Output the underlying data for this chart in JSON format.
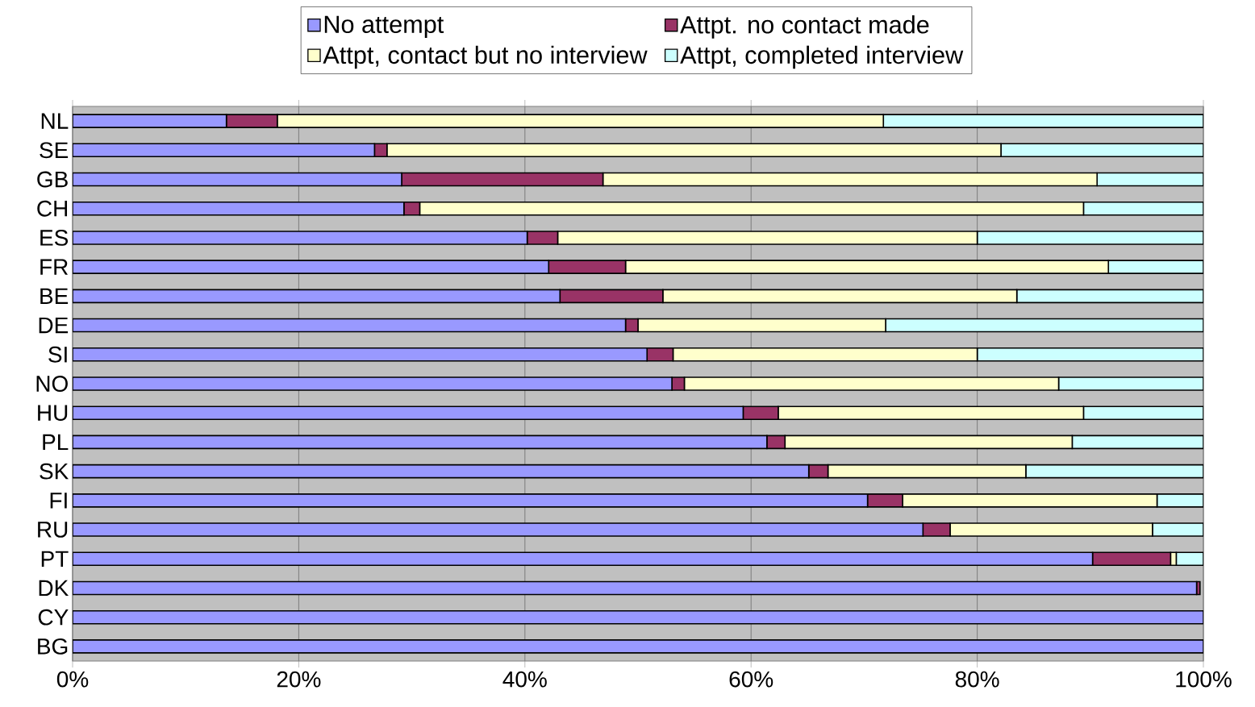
{
  "chart_data": {
    "type": "bar",
    "orientation": "horizontal",
    "stacked": true,
    "categories": [
      "NL",
      "SE",
      "GB",
      "CH",
      "ES",
      "FR",
      "BE",
      "DE",
      "SI",
      "NO",
      "HU",
      "PL",
      "SK",
      "FI",
      "RU",
      "PT",
      "DK",
      "CY",
      "BG"
    ],
    "series": [
      {
        "name": "No attempt",
        "color": "#9999ff",
        "values": [
          13.6,
          26.7,
          29.1,
          29.3,
          40.2,
          42.1,
          43.1,
          48.9,
          50.8,
          53.0,
          59.3,
          61.4,
          65.1,
          70.3,
          75.2,
          90.2,
          99.4,
          100,
          100
        ]
      },
      {
        "name": "Attpt. no contact made",
        "color": "#993366",
        "values": [
          4.5,
          1.1,
          17.8,
          1.4,
          2.7,
          6.8,
          9.1,
          1.1,
          2.3,
          1.1,
          3.1,
          1.6,
          1.7,
          3.1,
          2.4,
          6.9,
          0.3,
          0,
          0
        ]
      },
      {
        "name": "Attpt, contact but no interview",
        "color": "#ffffcc",
        "values": [
          53.6,
          54.3,
          43.7,
          58.7,
          37.1,
          42.7,
          31.3,
          21.9,
          26.9,
          33.1,
          27.0,
          25.4,
          17.5,
          22.5,
          17.9,
          0.5,
          null,
          0,
          0
        ]
      },
      {
        "name": "Attpt, completed interview",
        "color": "#ccffff",
        "values": [
          28.3,
          17.9,
          9.4,
          10.6,
          20.0,
          8.4,
          16.5,
          28.1,
          20.0,
          12.8,
          10.6,
          11.6,
          15.7,
          4.1,
          4.5,
          2.4,
          null,
          0,
          0
        ]
      }
    ],
    "xlim": [
      0,
      100
    ],
    "xticks": [
      {
        "value": 0,
        "label": "0%"
      },
      {
        "value": 20,
        "label": "20%"
      },
      {
        "value": 40,
        "label": "40%"
      },
      {
        "value": 60,
        "label": "60%"
      },
      {
        "value": 80,
        "label": "80%"
      },
      {
        "value": 100,
        "label": "100%"
      }
    ],
    "grid": "x",
    "legend": "top"
  }
}
